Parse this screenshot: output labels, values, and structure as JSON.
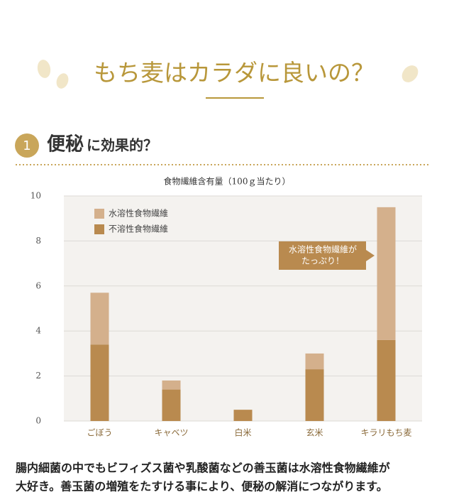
{
  "header": {
    "title": "もち麦はカラダに良いの？"
  },
  "section": {
    "number": "1",
    "keyword": "便秘",
    "rest": "に効果的？"
  },
  "chart_data": {
    "type": "stacked_bar",
    "title": "食物繊維含有量（100ｇ当たり）",
    "categories": [
      "ごぼう",
      "キャベツ",
      "白米",
      "玄米",
      "キラリもち麦"
    ],
    "series": [
      {
        "name": "水溶性食物繊維",
        "color": "#d4b08c",
        "values": [
          2.3,
          0.4,
          0,
          0.7,
          5.9
        ]
      },
      {
        "name": "不溶性食物繊維",
        "color": "#b98a4f",
        "values": [
          3.4,
          1.4,
          0.5,
          2.3,
          3.6
        ]
      }
    ],
    "ylim": [
      0,
      10
    ],
    "yticks": [
      0,
      2,
      4,
      6,
      8,
      10
    ],
    "grid": true,
    "legend": "top-left",
    "annotation": [
      "水溶性食物繊維が",
      "たっぷり！"
    ]
  },
  "body": {
    "lines": [
      "腸内細菌の中でもビフィズス菌や乳酸菌などの善玉菌は水溶性食物繊維が",
      "大好き。善玉菌の増殖をたすける事により、便秘の解消につながります。"
    ]
  }
}
